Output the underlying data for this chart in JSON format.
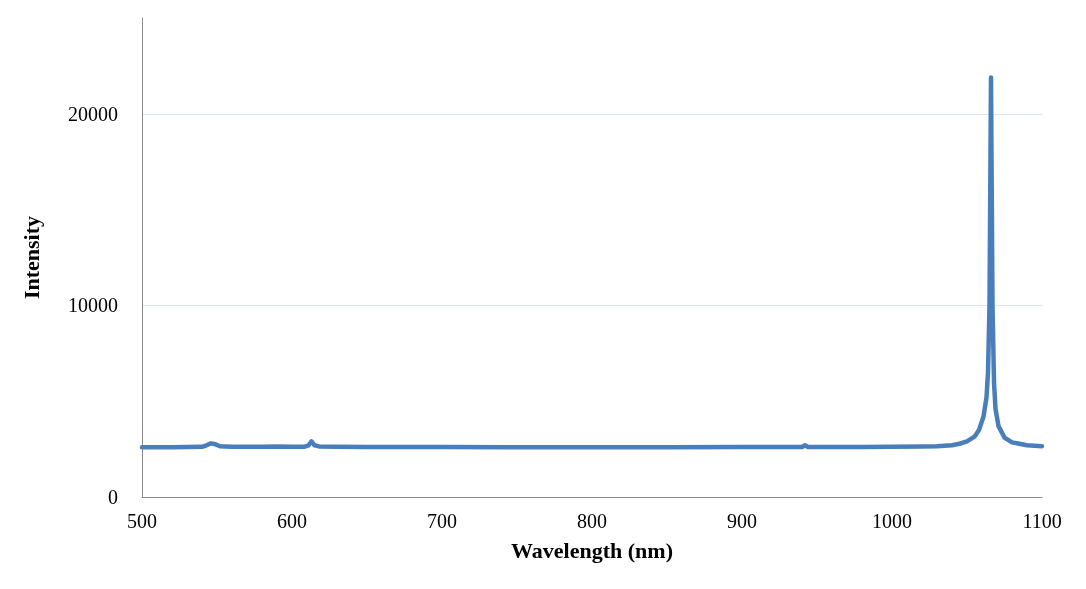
{
  "chart_data": {
    "type": "line",
    "xlabel": "Wavelength (nm)",
    "ylabel": "Intensity",
    "xlim": [
      500,
      1100
    ],
    "xticks": [
      500,
      600,
      700,
      800,
      900,
      1000,
      1100
    ],
    "ylim": [
      0,
      25000
    ],
    "yticks": [
      0,
      10000,
      20000
    ],
    "grid": "y",
    "marker": "none",
    "line_style": "solid",
    "series": [
      {
        "color": "#4a7ebb",
        "x": [
          500,
          520,
          540,
          543,
          546,
          549,
          552,
          560,
          580,
          590,
          600,
          608,
          611,
          613,
          615,
          618,
          630,
          650,
          700,
          750,
          800,
          850,
          900,
          940,
          942,
          944,
          980,
          1000,
          1020,
          1030,
          1040,
          1045,
          1050,
          1055,
          1058,
          1061,
          1063,
          1064,
          1065,
          1066,
          1067,
          1068,
          1069,
          1071,
          1075,
          1080,
          1090,
          1100
        ],
        "values": [
          2600,
          2600,
          2620,
          2700,
          2800,
          2750,
          2650,
          2620,
          2620,
          2640,
          2620,
          2620,
          2700,
          2900,
          2700,
          2640,
          2620,
          2610,
          2610,
          2600,
          2600,
          2600,
          2610,
          2610,
          2700,
          2610,
          2610,
          2620,
          2630,
          2650,
          2700,
          2780,
          2900,
          3150,
          3500,
          4200,
          5200,
          6500,
          10000,
          21900,
          10000,
          6000,
          4600,
          3700,
          3100,
          2850,
          2700,
          2650
        ]
      }
    ]
  }
}
